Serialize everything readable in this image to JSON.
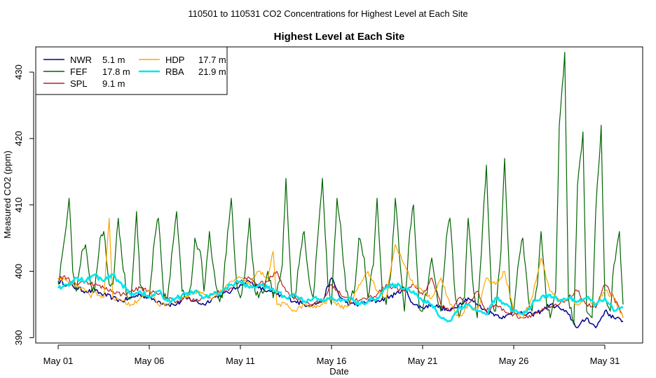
{
  "chart_data": {
    "type": "line",
    "suptitle": "110501  to  110531 CO2 Concentrations for Highest Level at Each Site",
    "title": "Highest Level at Each Site",
    "xlabel": "Date",
    "ylabel": "Measured CO2 (ppm)",
    "xlim": [
      0,
      31.2
    ],
    "ylim": [
      389.2,
      433.8
    ],
    "x_ticks": [
      {
        "x": 0,
        "label": "May 01"
      },
      {
        "x": 5,
        "label": "May 06"
      },
      {
        "x": 10,
        "label": "May 11"
      },
      {
        "x": 15,
        "label": "May 16"
      },
      {
        "x": 20,
        "label": "May 21"
      },
      {
        "x": 25,
        "label": "May 26"
      },
      {
        "x": 30,
        "label": "May 31"
      }
    ],
    "y_ticks": [
      390,
      400,
      410,
      420,
      430
    ],
    "legend_position": "top-left",
    "series": [
      {
        "name": "NWR",
        "height": "5.1 m",
        "color": "#00008b",
        "width": 1.5,
        "x": [
          0,
          0.5,
          1,
          1.5,
          2,
          2.5,
          3,
          3.5,
          4,
          4.5,
          5,
          5.5,
          6,
          6.5,
          7,
          7.5,
          8,
          8.5,
          9,
          9.5,
          10,
          10.5,
          11,
          11.5,
          12,
          12.5,
          13,
          13.5,
          14,
          14.5,
          15,
          15.5,
          16,
          16.5,
          17,
          17.5,
          18,
          18.5,
          19,
          19.5,
          20,
          20.5,
          21,
          21.5,
          22,
          22.5,
          23,
          23.5,
          24,
          24.5,
          25,
          25.5,
          26,
          26.5,
          27,
          27.5,
          28,
          28.5,
          29,
          29.5,
          30,
          30.5,
          31
        ],
        "y": [
          398.5,
          398,
          397.5,
          397,
          397,
          396.5,
          396,
          395.5,
          396,
          396.5,
          396,
          395.5,
          395,
          395,
          396,
          395.5,
          395,
          396,
          396.5,
          397,
          398,
          398.5,
          397.5,
          397,
          396.5,
          396,
          395.5,
          395,
          395,
          395.5,
          399,
          396,
          395,
          395,
          395.5,
          395.5,
          396,
          396.5,
          397.5,
          395,
          394.5,
          395,
          394.5,
          394,
          395,
          396,
          395,
          394,
          393.5,
          393,
          394,
          393.5,
          393.5,
          394,
          395,
          394.5,
          393.5,
          391.5,
          393,
          391.5,
          394,
          393,
          392.5
        ]
      },
      {
        "name": "FEF",
        "height": "17.8 m",
        "color": "#006400",
        "width": 1.2,
        "x": [
          0,
          0.3,
          0.6,
          0.8,
          1,
          1.3,
          1.5,
          1.8,
          2,
          2.3,
          2.5,
          2.8,
          3,
          3.3,
          3.5,
          3.8,
          4,
          4.3,
          4.5,
          4.8,
          5,
          5.3,
          5.5,
          5.8,
          6,
          6.3,
          6.5,
          6.8,
          7,
          7.3,
          7.5,
          7.8,
          8,
          8.3,
          8.5,
          8.8,
          9,
          9.3,
          9.5,
          9.8,
          10,
          10.3,
          10.5,
          10.8,
          11,
          11.3,
          11.5,
          11.8,
          12,
          12.3,
          12.5,
          12.8,
          13,
          13.3,
          13.5,
          13.8,
          14,
          14.3,
          14.5,
          14.8,
          15,
          15.3,
          15.5,
          15.8,
          16,
          16.3,
          16.5,
          16.8,
          17,
          17.3,
          17.5,
          17.8,
          18,
          18.3,
          18.5,
          18.8,
          19,
          19.3,
          19.5,
          19.8,
          20,
          20.3,
          20.5,
          20.8,
          21,
          21.3,
          21.5,
          21.8,
          22,
          22.3,
          22.5,
          22.8,
          23,
          23.3,
          23.5,
          23.8,
          24,
          24.3,
          24.5,
          24.8,
          25,
          25.3,
          25.5,
          25.8,
          26,
          26.3,
          26.5,
          26.8,
          27,
          27.3,
          27.5,
          27.8,
          28,
          28.3,
          28.5,
          28.8,
          29,
          29.3,
          29.5,
          29.8,
          30,
          30.3,
          30.5,
          30.8,
          31
        ],
        "y": [
          398,
          404,
          411,
          400,
          397,
          403,
          404,
          398,
          397,
          405,
          406,
          398,
          398,
          408,
          402,
          396,
          396,
          409,
          398,
          396,
          396,
          405,
          408,
          396,
          396,
          404,
          409,
          397,
          396,
          398,
          405,
          403,
          397,
          406,
          401,
          396,
          396,
          406,
          411,
          398,
          396,
          401,
          408,
          397,
          396,
          397,
          400,
          396,
          397,
          401,
          414,
          397,
          396,
          403,
          406,
          398,
          396,
          407,
          414,
          398,
          395,
          411,
          407,
          397,
          395,
          398,
          405,
          402,
          396,
          401,
          411,
          396,
          395,
          401,
          411,
          400,
          394,
          406,
          410,
          395,
          394,
          398,
          402,
          396,
          394,
          405,
          408,
          396,
          393,
          396,
          408,
          397,
          393,
          407,
          416,
          395,
          394,
          403,
          417,
          396,
          394,
          402,
          405,
          396,
          394,
          398,
          406,
          395,
          393,
          397,
          422,
          433,
          396,
          392,
          413,
          421,
          394,
          393,
          409,
          422,
          396,
          394,
          401,
          406,
          395
        ]
      },
      {
        "name": "SPL",
        "height": "9.1 m",
        "color": "#b22222",
        "width": 1.2,
        "x": [
          0,
          0.5,
          1,
          1.5,
          2,
          2.5,
          3,
          3.5,
          4,
          4.5,
          5,
          5.5,
          6,
          6.5,
          7,
          7.5,
          8,
          8.5,
          9,
          9.5,
          10,
          10.5,
          11,
          11.5,
          12,
          12.5,
          13,
          13.5,
          14,
          14.5,
          15,
          15.5,
          16,
          16.5,
          17,
          17.5,
          18,
          18.5,
          19,
          19.5,
          20,
          20.5,
          21,
          21.5,
          22,
          22.5,
          23,
          23.5,
          24,
          24.5,
          25,
          25.5,
          26,
          26.5,
          27,
          27.5,
          28,
          28.5,
          29,
          29.5,
          30,
          30.5,
          31
        ],
        "y": [
          399,
          399,
          398,
          398.5,
          398,
          397.5,
          397,
          396.5,
          397,
          397.5,
          397,
          396.5,
          396,
          395.5,
          396,
          395.5,
          396,
          396.5,
          397,
          397.5,
          398.5,
          399,
          398,
          398.5,
          400,
          397,
          396,
          395.5,
          395,
          395.5,
          398,
          396.5,
          396,
          395.5,
          396,
          396.5,
          398,
          397.5,
          397,
          398,
          396.5,
          399,
          395,
          394,
          396,
          395,
          397,
          394,
          395,
          394,
          393.5,
          393,
          393.5,
          394,
          394.5,
          395,
          396,
          397,
          395,
          394.5,
          398,
          396,
          393
        ]
      },
      {
        "name": "HDP",
        "height": "17.7 m",
        "color": "#ffa500",
        "width": 1.2,
        "x": [
          0,
          0.5,
          1,
          1.5,
          1.8,
          2,
          2.5,
          2.8,
          3,
          3.5,
          4,
          4.5,
          5,
          5.5,
          6,
          6.5,
          7,
          7.5,
          8,
          8.5,
          9,
          9.5,
          10,
          10.5,
          11,
          11.5,
          11.8,
          12,
          12.5,
          13,
          13.5,
          14,
          14.5,
          15,
          15.5,
          16,
          16.5,
          17,
          17.5,
          18,
          18.5,
          19,
          19.5,
          20,
          20.5,
          21,
          21.5,
          22,
          22.5,
          23,
          23.5,
          24,
          24.5,
          25,
          25.5,
          26,
          26.5,
          27,
          27.5,
          28,
          28.5,
          29,
          29.5,
          30,
          30.5,
          31
        ],
        "y": [
          399,
          398.5,
          398,
          397,
          396,
          397,
          396,
          408,
          396,
          395.5,
          395,
          396,
          397,
          395,
          395,
          396,
          396,
          397,
          396.5,
          396,
          397,
          398.5,
          399,
          398,
          400,
          399,
          403,
          395,
          395,
          394,
          395,
          394.5,
          395,
          396,
          394.5,
          395,
          398,
          400,
          397,
          396,
          404,
          401,
          398,
          397,
          396,
          399,
          395,
          393,
          395,
          394,
          399,
          398,
          400,
          394,
          393,
          396,
          402,
          397,
          395.5,
          396,
          395,
          396,
          395,
          397,
          396,
          393
        ]
      },
      {
        "name": "RBA",
        "height": "21.9 m",
        "color": "#00e5ee",
        "width": 2.6,
        "x": [
          0,
          0.5,
          1,
          1.5,
          2,
          2.5,
          3,
          3.5,
          4,
          4.5,
          5,
          5.5,
          6,
          6.5,
          7,
          7.5,
          8,
          8.5,
          9,
          9.5,
          10,
          10.5,
          11,
          11.5,
          12,
          12.5,
          13,
          13.5,
          14,
          14.5,
          15,
          15.5,
          16,
          16.5,
          17,
          17.5,
          18,
          18.5,
          19,
          19.5,
          20,
          20.5,
          21,
          21.5,
          22,
          22.5,
          23,
          23.5,
          24,
          24.5,
          25,
          25.5,
          26,
          26.5,
          27,
          27.5,
          28,
          28.5,
          29,
          29.5,
          30,
          30.5,
          31
        ],
        "y": [
          397.5,
          398,
          399,
          398.5,
          399.5,
          398.5,
          399.5,
          398,
          396.5,
          397,
          396,
          397,
          395.5,
          396,
          396.5,
          397,
          396,
          396.5,
          397,
          398,
          398.5,
          397.5,
          398,
          397.5,
          397,
          396,
          396.5,
          395.5,
          396,
          395.5,
          396,
          395.5,
          396,
          395,
          395.5,
          396,
          397.5,
          398,
          397.5,
          397,
          395.5,
          395,
          393,
          392.5,
          394.5,
          395,
          394,
          393.5,
          396,
          395,
          394,
          393.5,
          395,
          396,
          396.5,
          395.5,
          396,
          395.5,
          396,
          395,
          396,
          394,
          394.5
        ]
      }
    ]
  }
}
